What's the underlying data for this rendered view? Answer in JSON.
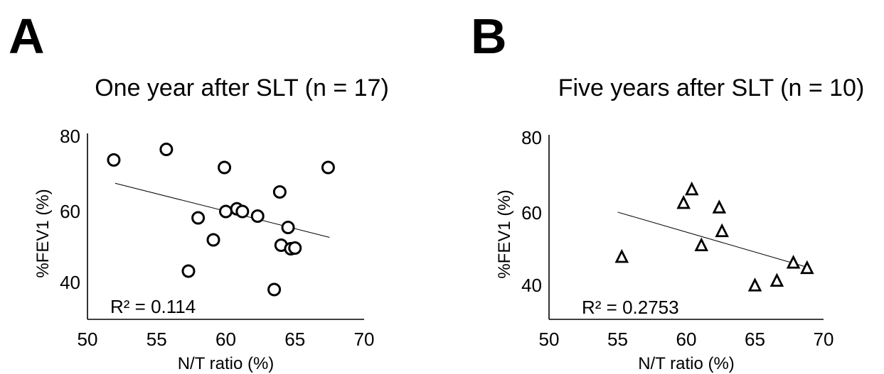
{
  "panels": [
    {
      "letter": "A"
    },
    {
      "letter": "B"
    }
  ],
  "chart_data": [
    {
      "type": "scatter",
      "panel": "A",
      "title": "One year after SLT (n = 17)",
      "xlabel": "N/T ratio (%)",
      "ylabel": "%FEV1 (%)",
      "xlim": [
        50,
        70
      ],
      "ylim": [
        35,
        80
      ],
      "xticks": [
        "50",
        "55",
        "60",
        "65",
        "70"
      ],
      "yticks": [
        "40",
        "60",
        "80"
      ],
      "marker": "circle",
      "annotation": "R² = 0.114",
      "trendline": {
        "x": [
          52,
          67.5
        ],
        "y": [
          67.5,
          52.7
        ]
      },
      "series": [
        {
          "x": [
            51.9,
            55.7,
            59.9,
            67.4,
            63.9,
            58.0,
            60.0,
            60.8,
            61.2,
            62.3,
            64.5,
            59.1,
            64.0,
            64.7,
            65.0,
            57.3,
            63.5
          ],
          "y": [
            73.7,
            76.5,
            71.7,
            71.7,
            65.2,
            58.2,
            60.0,
            60.7,
            60.0,
            58.7,
            55.5,
            52.0,
            50.5,
            49.5,
            49.7,
            43.2,
            38.0
          ]
        }
      ]
    },
    {
      "type": "scatter",
      "panel": "B",
      "title": "Five years after SLT (n = 10)",
      "xlabel": "N/T ratio (%)",
      "ylabel": "%FEV1 (%)",
      "xlim": [
        50,
        70
      ],
      "ylim": [
        35,
        80
      ],
      "xticks": [
        "50",
        "55",
        "60",
        "65",
        "70"
      ],
      "yticks": [
        "40",
        "60",
        "80"
      ],
      "marker": "triangle",
      "annotation": "R² = 0.2753",
      "trendline": {
        "x": [
          55,
          68.8
        ],
        "y": [
          60.2,
          45.0
        ]
      },
      "series": [
        {
          "x": [
            55.3,
            60.4,
            59.8,
            62.4,
            62.6,
            61.1,
            67.8,
            68.8,
            65.0,
            66.6
          ],
          "y": [
            47.8,
            66.2,
            62.6,
            61.4,
            54.9,
            51.0,
            46.2,
            44.7,
            39.9,
            41.2
          ]
        }
      ]
    }
  ]
}
